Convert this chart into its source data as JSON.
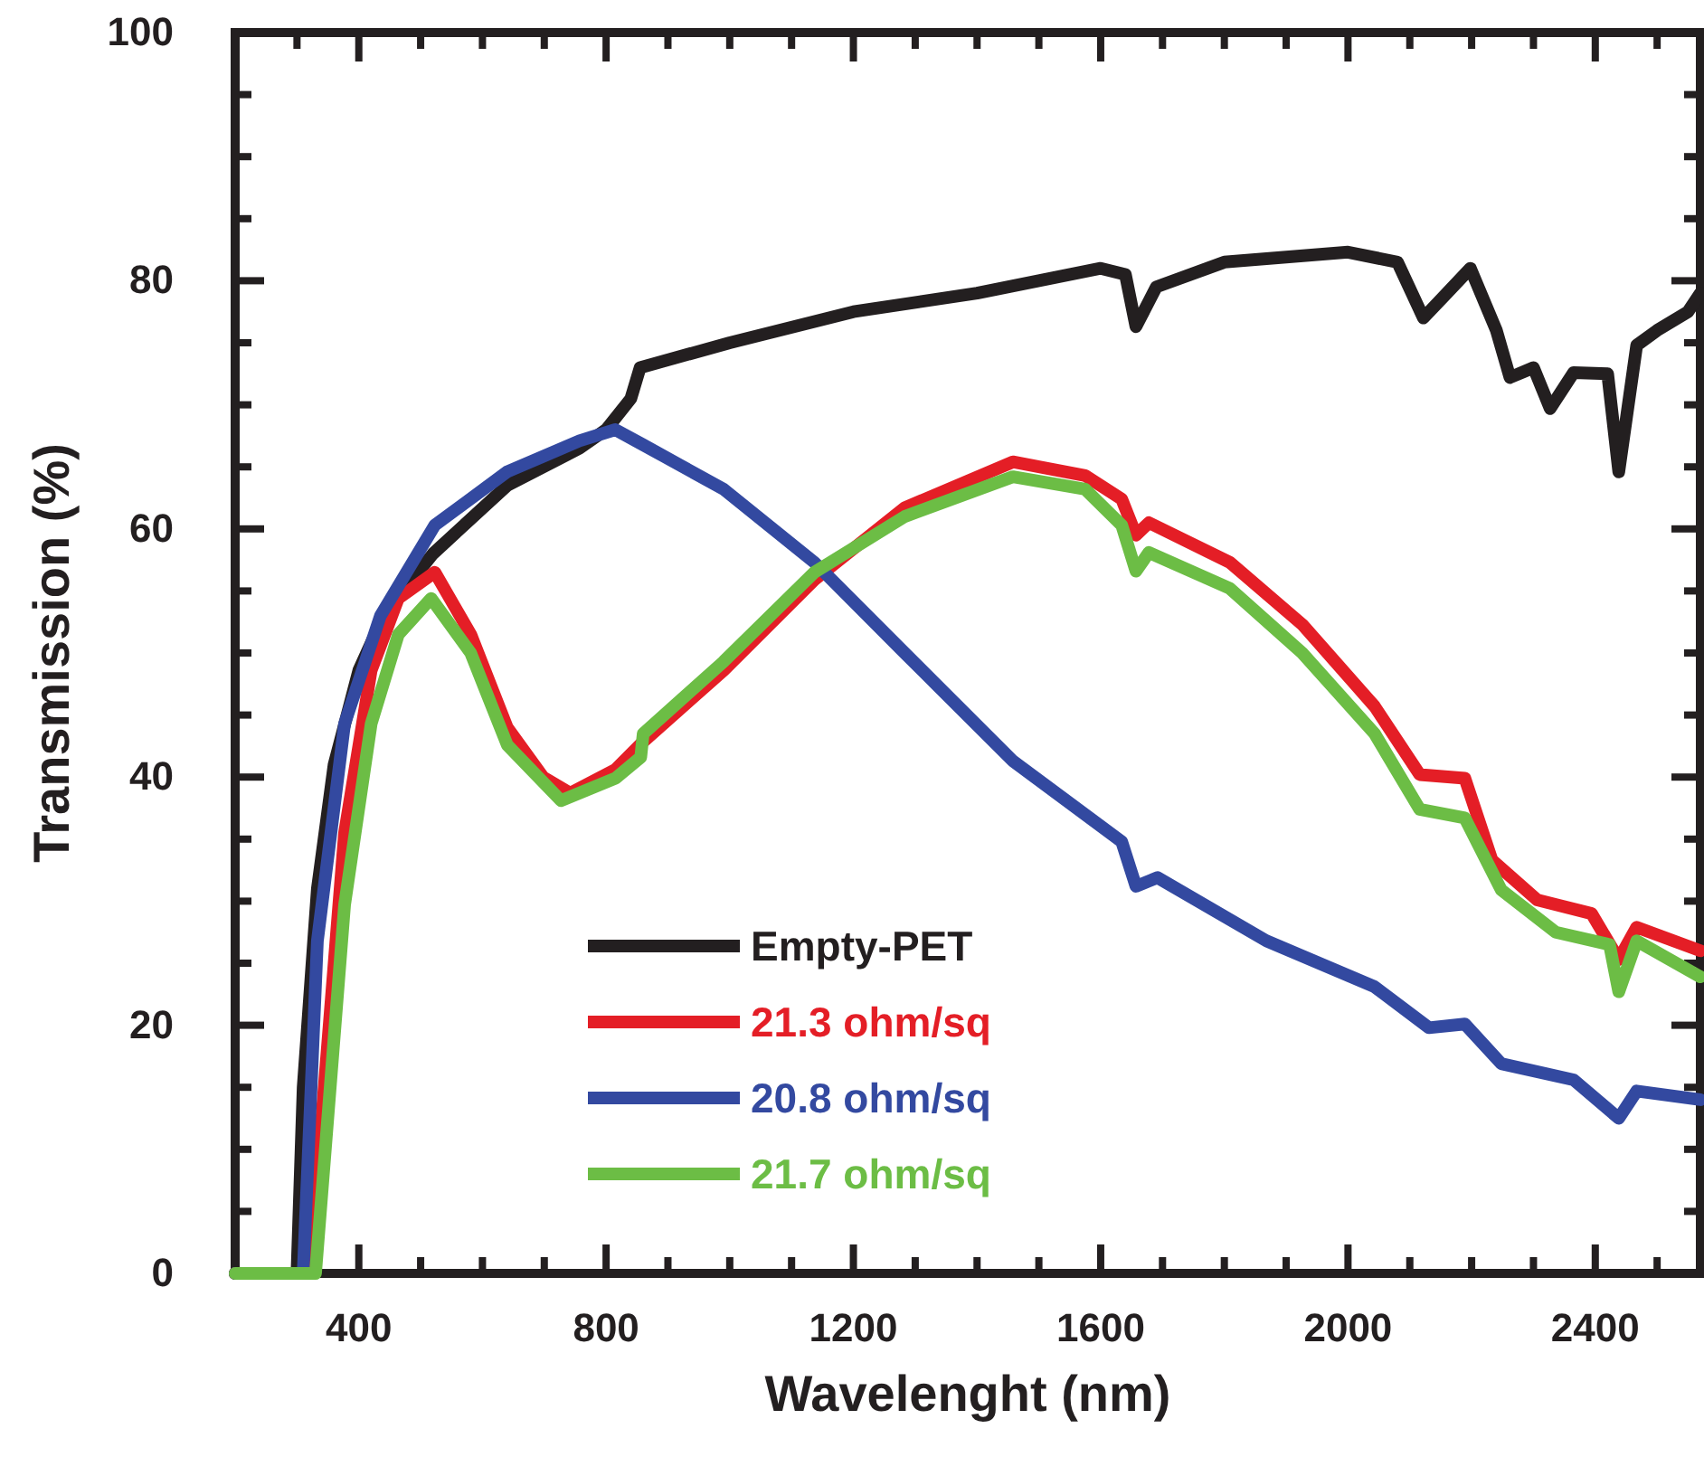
{
  "chart_data": {
    "type": "line",
    "xlabel": "Wavelenght (nm)",
    "ylabel": "Transmission (%)",
    "xlim": [
      200,
      2570
    ],
    "ylim": [
      0,
      100
    ],
    "xticks": [
      {
        "value": 200,
        "label": null
      },
      {
        "value": 300,
        "label": null
      },
      400,
      {
        "value": 500,
        "label": null
      },
      {
        "value": 600,
        "label": null
      },
      {
        "value": 700,
        "label": null
      },
      800,
      {
        "value": 900,
        "label": null
      },
      {
        "value": 1000,
        "label": null
      },
      {
        "value": 1100,
        "label": null
      },
      1200,
      {
        "value": 1300,
        "label": null
      },
      {
        "value": 1400,
        "label": null
      },
      {
        "value": 1500,
        "label": null
      },
      1600,
      {
        "value": 1700,
        "label": null
      },
      {
        "value": 1800,
        "label": null
      },
      {
        "value": 1900,
        "label": null
      },
      2000,
      {
        "value": 2100,
        "label": null
      },
      {
        "value": 2200,
        "label": null
      },
      {
        "value": 2300,
        "label": null
      },
      2400,
      {
        "value": 2500,
        "label": null
      }
    ],
    "yticks": [
      0,
      {
        "value": 5,
        "label": null
      },
      {
        "value": 10,
        "label": null
      },
      {
        "value": 15,
        "label": null
      },
      20,
      {
        "value": 25,
        "label": null
      },
      {
        "value": 30,
        "label": null
      },
      {
        "value": 35,
        "label": null
      },
      40,
      {
        "value": 45,
        "label": null
      },
      {
        "value": 50,
        "label": null
      },
      {
        "value": 55,
        "label": null
      },
      60,
      {
        "value": 65,
        "label": null
      },
      {
        "value": 70,
        "label": null
      },
      {
        "value": 75,
        "label": null
      },
      80,
      {
        "value": 85,
        "label": null
      },
      {
        "value": 90,
        "label": null
      },
      {
        "value": 95,
        "label": null
      },
      100
    ],
    "grid": false,
    "legend": "bottom",
    "line_style": "solid",
    "marker": "none",
    "series": [
      {
        "name": "Empty-PET",
        "color": "#231f20",
        "x": [
          200,
          300,
          310,
          333,
          360,
          400,
          440,
          520,
          640,
          757,
          800,
          840,
          855,
          1000,
          1200,
          1400,
          1600,
          1640,
          1657,
          1690,
          1800,
          2000,
          2080,
          2122,
          2160,
          2198,
          2240,
          2262,
          2300,
          2327,
          2365,
          2420,
          2438,
          2467,
          2500,
          2550,
          2570
        ],
        "values": [
          0,
          0,
          15,
          31,
          41,
          48.6,
          53,
          58,
          63.5,
          66.5,
          68,
          70.5,
          73,
          75,
          77.5,
          79,
          81,
          80.5,
          76.3,
          79.5,
          81.5,
          82.3,
          81.5,
          77,
          79,
          81,
          76,
          72.2,
          73,
          69.7,
          72.6,
          72.5,
          64.6,
          74.8,
          76,
          77.5,
          79
        ]
      },
      {
        "name": "21.3 ohm/sq",
        "color": "#e41e26",
        "x": [
          200,
          320,
          377,
          420,
          464,
          523,
          581,
          640,
          698,
          742,
          815,
          859,
          990,
          1137,
          1283,
          1458,
          1575,
          1634,
          1657,
          1678,
          1809,
          1926,
          2043,
          2116,
          2189,
          2233,
          2306,
          2394,
          2438,
          2467,
          2570
        ],
        "values": [
          0,
          0,
          35.5,
          48.6,
          54.4,
          56.5,
          51.5,
          44,
          40,
          38.7,
          40.6,
          42.8,
          48.6,
          55.9,
          61.7,
          65.4,
          64.3,
          62.4,
          59.5,
          60.5,
          57.3,
          52.3,
          45.7,
          40.2,
          39.9,
          33.3,
          30.1,
          29,
          25.3,
          27.9,
          26
        ]
      },
      {
        "name": "20.8 ohm/sq",
        "color": "#3349a0",
        "x": [
          200,
          310,
          333,
          377,
          435,
          523,
          640,
          757,
          815,
          859,
          990,
          1137,
          1283,
          1458,
          1634,
          1657,
          1692,
          1868,
          2043,
          2131,
          2189,
          2248,
          2365,
          2438,
          2467,
          2570
        ],
        "values": [
          0,
          0,
          26.8,
          44.3,
          53,
          60.3,
          64.6,
          67.1,
          68,
          66.8,
          63.2,
          57.3,
          50,
          41.3,
          34.8,
          31.2,
          31.9,
          26.8,
          23.1,
          19.8,
          20.1,
          16.9,
          15.6,
          12.5,
          14.7,
          14
        ]
      },
      {
        "name": "21.7 ohm/sq",
        "color": "#6cbd45",
        "x": [
          200,
          330,
          377,
          420,
          464,
          517,
          581,
          640,
          727,
          815,
          856,
          860,
          990,
          1137,
          1283,
          1458,
          1575,
          1634,
          1657,
          1678,
          1809,
          1926,
          2043,
          2116,
          2189,
          2248,
          2336,
          2423,
          2438,
          2467,
          2570
        ],
        "values": [
          0,
          0,
          29.7,
          44.3,
          51.5,
          54.4,
          50,
          42.6,
          38.1,
          39.9,
          41.6,
          43.5,
          49.3,
          56.5,
          61,
          64.2,
          63.2,
          60.3,
          56.6,
          58.1,
          55.2,
          50,
          43.5,
          37.4,
          36.7,
          30.9,
          27.5,
          26.5,
          22.7,
          26.8,
          23.9
        ]
      }
    ]
  }
}
